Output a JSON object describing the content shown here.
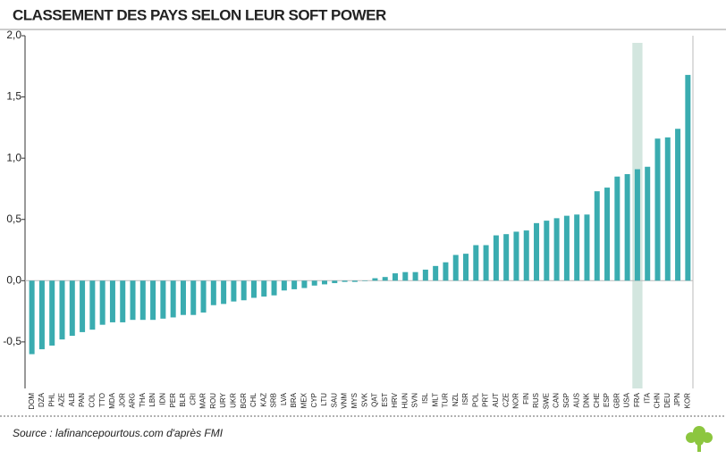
{
  "chart_data": {
    "type": "bar",
    "title": "CLASSEMENT DES PAYS SELON LEUR SOFT POWER",
    "source": "Source : lafinancepourtous.com d'après FMI",
    "categories": [
      "DOM",
      "DZA",
      "PHL",
      "AZE",
      "ALB",
      "PAN",
      "COL",
      "TTO",
      "MDA",
      "JOR",
      "ARG",
      "THA",
      "LBN",
      "IDN",
      "PER",
      "BLR",
      "CRI",
      "MAR",
      "ROU",
      "URY",
      "UKR",
      "BGR",
      "CHL",
      "KAZ",
      "SRB",
      "LVA",
      "BRA",
      "MEX",
      "CYP",
      "LTU",
      "SAU",
      "VNM",
      "MYS",
      "SVK",
      "QAT",
      "EST",
      "HRV",
      "HUN",
      "SVN",
      "ISL",
      "MLT",
      "TUR",
      "NZL",
      "ISR",
      "POL",
      "PRT",
      "AUT",
      "CZE",
      "NOR",
      "FIN",
      "RUS",
      "SWE",
      "CAN",
      "SGP",
      "AUS",
      "DNK",
      "CHE",
      "ESP",
      "GBR",
      "USA",
      "FRA",
      "ITA",
      "CHN",
      "DEU",
      "JPN",
      "KOR"
    ],
    "values": [
      -0.6,
      -0.56,
      -0.53,
      -0.48,
      -0.45,
      -0.42,
      -0.4,
      -0.36,
      -0.34,
      -0.34,
      -0.32,
      -0.32,
      -0.32,
      -0.31,
      -0.3,
      -0.28,
      -0.28,
      -0.26,
      -0.2,
      -0.19,
      -0.17,
      -0.16,
      -0.14,
      -0.13,
      -0.12,
      -0.08,
      -0.07,
      -0.06,
      -0.04,
      -0.03,
      -0.02,
      -0.01,
      -0.01,
      0.0,
      0.02,
      0.03,
      0.06,
      0.07,
      0.07,
      0.09,
      0.12,
      0.15,
      0.21,
      0.22,
      0.29,
      0.29,
      0.37,
      0.38,
      0.4,
      0.41,
      0.47,
      0.49,
      0.51,
      0.53,
      0.54,
      0.54,
      0.73,
      0.76,
      0.85,
      0.87,
      0.91,
      0.93,
      1.16,
      1.17,
      1.24,
      1.68
    ],
    "color": "#3aacb0",
    "highlight": "FRA",
    "highlight_color": "#d3e6df",
    "ylim": [
      -0.88,
      2.0
    ],
    "yticks": [
      {
        "value": -0.5,
        "label": "-0,5"
      },
      {
        "value": 0,
        "label": "0,0"
      },
      {
        "value": 0.5,
        "label": "0,5"
      },
      {
        "value": 1,
        "label": "1,0"
      },
      {
        "value": 1.5,
        "label": "1,5"
      },
      {
        "value": 2,
        "label": "2,0"
      }
    ]
  }
}
